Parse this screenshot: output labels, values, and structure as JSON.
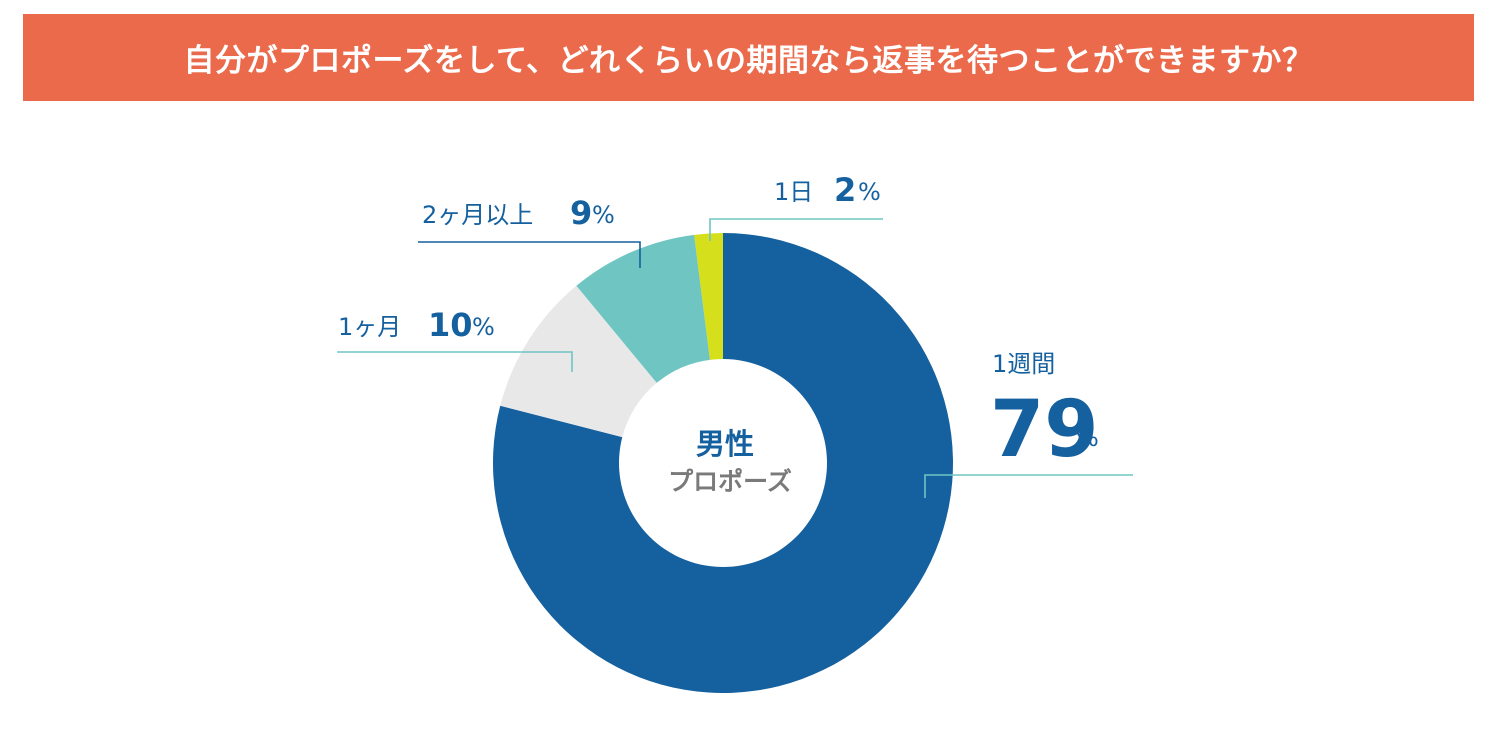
{
  "header": {
    "title": "自分がプロポーズをして、どれくらいの期間なら返事を待つことができますか？"
  },
  "chart_data": {
    "type": "pie",
    "center_label": "男性",
    "center_sublabel": "プロポーズ",
    "slices": [
      {
        "label": "1週間",
        "value": 79,
        "pct_text": "79",
        "color": "#15609f"
      },
      {
        "label": "1ヶ月",
        "value": 10,
        "pct_text": "10",
        "color": "#e8e8e8"
      },
      {
        "label": "2ヶ月以上",
        "value": 9,
        "pct_text": "9",
        "color": "#6fc5c2"
      },
      {
        "label": "1日",
        "value": 2,
        "pct_text": "2",
        "color": "#d5df1b"
      }
    ],
    "percent_sign": "%",
    "leader_color": "#6fc5c2"
  }
}
